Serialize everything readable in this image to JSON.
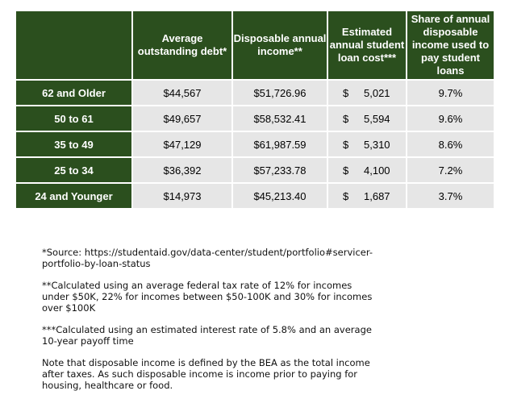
{
  "table": {
    "headers": [
      "",
      "Average outstanding debt*",
      "Disposable annual income**",
      "Estimated annual student loan cost***",
      "Share of annual disposable income used to pay student loans"
    ],
    "rows": [
      {
        "group": "62 and Older",
        "debt": "$44,567",
        "income": "$51,726.96",
        "currency": "$",
        "cost": "5,021",
        "share": "9.7%"
      },
      {
        "group": "50 to 61",
        "debt": "$49,657",
        "income": "$58,532.41",
        "currency": "$",
        "cost": "5,594",
        "share": "9.6%"
      },
      {
        "group": "35 to 49",
        "debt": "$47,129",
        "income": "$61,987.59",
        "currency": "$",
        "cost": "5,310",
        "share": "8.6%"
      },
      {
        "group": "25 to 34",
        "debt": "$36,392",
        "income": "$57,233.78",
        "currency": "$",
        "cost": "4,100",
        "share": "7.2%"
      },
      {
        "group": "24 and Younger",
        "debt": "$14,973",
        "income": "$45,213.40",
        "currency": "$",
        "cost": "1,687",
        "share": "3.7%"
      }
    ]
  },
  "notes": {
    "source": "*Source: https://studentaid.gov/data-center/student/portfolio#servicer-portfolio-by-loan-status",
    "tax": "**Calculated using an average federal tax rate of 12% for incomes under $50K, 22% for incomes between $50-100K and 30% for incomes over $100K",
    "interest": "***Calculated using an estimated interest rate of 5.8% and an average 10-year payoff time",
    "disposable": "Note that disposable income is defined by the BEA as the total income after taxes.  As such disposable income is income prior to paying for housing, healthcare or food."
  },
  "colors": {
    "header_bg": "#2b4f1e",
    "cell_bg": "#e6e6e6"
  }
}
